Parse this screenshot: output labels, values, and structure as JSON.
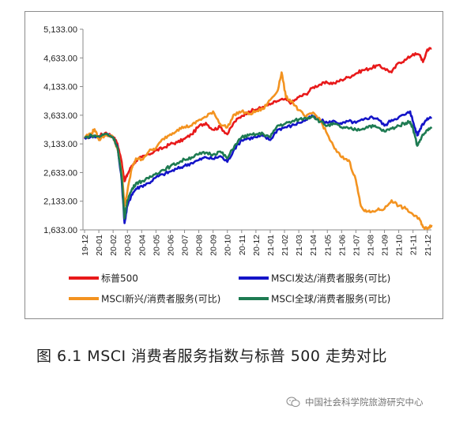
{
  "chart_data": {
    "type": "line",
    "title": "",
    "xlabel": "",
    "ylabel": "",
    "ylim": [
      1633,
      5133
    ],
    "yticks": [
      "5,133.00",
      "4,633.00",
      "4,133.00",
      "3,633.00",
      "3,133.00",
      "2,633.00",
      "2,133.00",
      "1,633.00"
    ],
    "ytick_values": [
      5133,
      4633,
      4133,
      3633,
      3133,
      2633,
      2133,
      1633
    ],
    "x_categories": [
      "19-12",
      "20-01",
      "20-02",
      "20-03",
      "20-04",
      "20-05",
      "20-06",
      "20-07",
      "20-08",
      "20-09",
      "20-10",
      "20-11",
      "20-12",
      "21-01",
      "21-02",
      "21-03",
      "21-04",
      "21-05",
      "21-06",
      "21-07",
      "21-08",
      "21-09",
      "21-10",
      "21-11",
      "21-12"
    ],
    "grid": false,
    "legend_position": "bottom",
    "series": [
      {
        "name": "标普500",
        "color": "#e8191a",
        "values": [
          {
            "x": 0,
            "y": 3230
          },
          {
            "x": 0.5,
            "y": 3280
          },
          {
            "x": 1,
            "y": 3270
          },
          {
            "x": 1.5,
            "y": 3330
          },
          {
            "x": 2,
            "y": 3260
          },
          {
            "x": 2.3,
            "y": 3140
          },
          {
            "x": 2.6,
            "y": 2820
          },
          {
            "x": 2.8,
            "y": 2480
          },
          {
            "x": 3,
            "y": 2600
          },
          {
            "x": 3.3,
            "y": 2750
          },
          {
            "x": 3.6,
            "y": 2840
          },
          {
            "x": 4,
            "y": 2900
          },
          {
            "x": 4.5,
            "y": 2950
          },
          {
            "x": 5,
            "y": 3020
          },
          {
            "x": 5.5,
            "y": 3060
          },
          {
            "x": 6,
            "y": 3130
          },
          {
            "x": 6.5,
            "y": 3160
          },
          {
            "x": 7,
            "y": 3220
          },
          {
            "x": 7.5,
            "y": 3300
          },
          {
            "x": 8,
            "y": 3440
          },
          {
            "x": 8.5,
            "y": 3500
          },
          {
            "x": 9,
            "y": 3380
          },
          {
            "x": 9.5,
            "y": 3430
          },
          {
            "x": 10,
            "y": 3300
          },
          {
            "x": 10.5,
            "y": 3520
          },
          {
            "x": 11,
            "y": 3620
          },
          {
            "x": 11.5,
            "y": 3700
          },
          {
            "x": 12,
            "y": 3730
          },
          {
            "x": 12.5,
            "y": 3780
          },
          {
            "x": 13,
            "y": 3820
          },
          {
            "x": 13.5,
            "y": 3880
          },
          {
            "x": 14,
            "y": 3910
          },
          {
            "x": 14.5,
            "y": 3850
          },
          {
            "x": 15,
            "y": 3950
          },
          {
            "x": 15.5,
            "y": 4000
          },
          {
            "x": 16,
            "y": 4120
          },
          {
            "x": 16.5,
            "y": 4170
          },
          {
            "x": 17,
            "y": 4200
          },
          {
            "x": 17.5,
            "y": 4190
          },
          {
            "x": 18,
            "y": 4250
          },
          {
            "x": 18.5,
            "y": 4300
          },
          {
            "x": 19,
            "y": 4360
          },
          {
            "x": 19.5,
            "y": 4420
          },
          {
            "x": 20,
            "y": 4450
          },
          {
            "x": 20.5,
            "y": 4500
          },
          {
            "x": 21,
            "y": 4450
          },
          {
            "x": 21.5,
            "y": 4380
          },
          {
            "x": 22,
            "y": 4550
          },
          {
            "x": 22.5,
            "y": 4600
          },
          {
            "x": 23,
            "y": 4700
          },
          {
            "x": 23.5,
            "y": 4680
          },
          {
            "x": 23.7,
            "y": 4560
          },
          {
            "x": 24,
            "y": 4780
          },
          {
            "x": 24.3,
            "y": 4800
          }
        ]
      },
      {
        "name": "MSCI发达/消费者服务(可比)",
        "color": "#1414c8",
        "values": [
          {
            "x": 0,
            "y": 3240
          },
          {
            "x": 0.5,
            "y": 3270
          },
          {
            "x": 1,
            "y": 3250
          },
          {
            "x": 1.5,
            "y": 3300
          },
          {
            "x": 2,
            "y": 3250
          },
          {
            "x": 2.3,
            "y": 3080
          },
          {
            "x": 2.6,
            "y": 2500
          },
          {
            "x": 2.8,
            "y": 1750
          },
          {
            "x": 3,
            "y": 2050
          },
          {
            "x": 3.3,
            "y": 2250
          },
          {
            "x": 3.6,
            "y": 2350
          },
          {
            "x": 4,
            "y": 2400
          },
          {
            "x": 4.5,
            "y": 2450
          },
          {
            "x": 5,
            "y": 2550
          },
          {
            "x": 5.5,
            "y": 2600
          },
          {
            "x": 6,
            "y": 2650
          },
          {
            "x": 6.5,
            "y": 2700
          },
          {
            "x": 7,
            "y": 2750
          },
          {
            "x": 7.5,
            "y": 2800
          },
          {
            "x": 8,
            "y": 2850
          },
          {
            "x": 8.5,
            "y": 2900
          },
          {
            "x": 9,
            "y": 2870
          },
          {
            "x": 9.5,
            "y": 2920
          },
          {
            "x": 10,
            "y": 2820
          },
          {
            "x": 10.5,
            "y": 3050
          },
          {
            "x": 11,
            "y": 3200
          },
          {
            "x": 11.5,
            "y": 3230
          },
          {
            "x": 12,
            "y": 3250
          },
          {
            "x": 12.5,
            "y": 3270
          },
          {
            "x": 13,
            "y": 3200
          },
          {
            "x": 13.5,
            "y": 3380
          },
          {
            "x": 14,
            "y": 3420
          },
          {
            "x": 14.5,
            "y": 3450
          },
          {
            "x": 15,
            "y": 3500
          },
          {
            "x": 15.5,
            "y": 3550
          },
          {
            "x": 16,
            "y": 3620
          },
          {
            "x": 16.5,
            "y": 3550
          },
          {
            "x": 17,
            "y": 3500
          },
          {
            "x": 17.5,
            "y": 3530
          },
          {
            "x": 18,
            "y": 3480
          },
          {
            "x": 18.5,
            "y": 3530
          },
          {
            "x": 19,
            "y": 3500
          },
          {
            "x": 19.5,
            "y": 3550
          },
          {
            "x": 20,
            "y": 3600
          },
          {
            "x": 20.5,
            "y": 3580
          },
          {
            "x": 21,
            "y": 3450
          },
          {
            "x": 21.5,
            "y": 3550
          },
          {
            "x": 22,
            "y": 3600
          },
          {
            "x": 22.5,
            "y": 3650
          },
          {
            "x": 22.8,
            "y": 3700
          },
          {
            "x": 23,
            "y": 3520
          },
          {
            "x": 23.3,
            "y": 3280
          },
          {
            "x": 23.6,
            "y": 3450
          },
          {
            "x": 24,
            "y": 3580
          },
          {
            "x": 24.3,
            "y": 3600
          }
        ]
      },
      {
        "name": "MSCI新兴/消费者服务(可比)",
        "color": "#f39320",
        "values": [
          {
            "x": 0,
            "y": 3260
          },
          {
            "x": 0.5,
            "y": 3320
          },
          {
            "x": 0.7,
            "y": 3390
          },
          {
            "x": 1,
            "y": 3200
          },
          {
            "x": 1.5,
            "y": 3300
          },
          {
            "x": 2,
            "y": 3250
          },
          {
            "x": 2.3,
            "y": 3050
          },
          {
            "x": 2.6,
            "y": 2650
          },
          {
            "x": 2.8,
            "y": 2050
          },
          {
            "x": 3,
            "y": 2300
          },
          {
            "x": 3.3,
            "y": 2700
          },
          {
            "x": 3.6,
            "y": 2880
          },
          {
            "x": 4,
            "y": 2860
          },
          {
            "x": 4.5,
            "y": 3000
          },
          {
            "x": 5,
            "y": 3060
          },
          {
            "x": 5.5,
            "y": 3220
          },
          {
            "x": 6,
            "y": 3300
          },
          {
            "x": 6.5,
            "y": 3380
          },
          {
            "x": 7,
            "y": 3430
          },
          {
            "x": 7.5,
            "y": 3450
          },
          {
            "x": 8,
            "y": 3550
          },
          {
            "x": 8.5,
            "y": 3600
          },
          {
            "x": 9,
            "y": 3700
          },
          {
            "x": 9.5,
            "y": 3480
          },
          {
            "x": 10,
            "y": 3420
          },
          {
            "x": 10.5,
            "y": 3650
          },
          {
            "x": 11,
            "y": 3700
          },
          {
            "x": 11.5,
            "y": 3650
          },
          {
            "x": 12,
            "y": 3700
          },
          {
            "x": 12.5,
            "y": 3740
          },
          {
            "x": 13,
            "y": 3900
          },
          {
            "x": 13.5,
            "y": 4050
          },
          {
            "x": 13.8,
            "y": 4380
          },
          {
            "x": 14.1,
            "y": 3950
          },
          {
            "x": 14.5,
            "y": 3880
          },
          {
            "x": 15,
            "y": 3720
          },
          {
            "x": 15.5,
            "y": 3600
          },
          {
            "x": 16,
            "y": 3680
          },
          {
            "x": 16.5,
            "y": 3550
          },
          {
            "x": 17,
            "y": 3300
          },
          {
            "x": 17.5,
            "y": 3050
          },
          {
            "x": 18,
            "y": 2900
          },
          {
            "x": 18.5,
            "y": 2850
          },
          {
            "x": 19,
            "y": 2500
          },
          {
            "x": 19.3,
            "y": 2100
          },
          {
            "x": 19.6,
            "y": 1960
          },
          {
            "x": 20,
            "y": 1940
          },
          {
            "x": 20.5,
            "y": 1980
          },
          {
            "x": 21,
            "y": 2000
          },
          {
            "x": 21.5,
            "y": 2150
          },
          {
            "x": 22,
            "y": 2050
          },
          {
            "x": 22.5,
            "y": 2000
          },
          {
            "x": 23,
            "y": 1900
          },
          {
            "x": 23.5,
            "y": 1800
          },
          {
            "x": 23.8,
            "y": 1650
          },
          {
            "x": 24.1,
            "y": 1680
          },
          {
            "x": 24.3,
            "y": 1720
          }
        ]
      },
      {
        "name": "MSCI全球/消费者服务(可比)",
        "color": "#1e7b52",
        "values": [
          {
            "x": 0,
            "y": 3240
          },
          {
            "x": 0.5,
            "y": 3280
          },
          {
            "x": 1,
            "y": 3260
          },
          {
            "x": 1.5,
            "y": 3310
          },
          {
            "x": 2,
            "y": 3250
          },
          {
            "x": 2.3,
            "y": 3080
          },
          {
            "x": 2.6,
            "y": 2550
          },
          {
            "x": 2.8,
            "y": 1830
          },
          {
            "x": 3,
            "y": 2150
          },
          {
            "x": 3.3,
            "y": 2330
          },
          {
            "x": 3.6,
            "y": 2450
          },
          {
            "x": 4,
            "y": 2480
          },
          {
            "x": 4.5,
            "y": 2530
          },
          {
            "x": 5,
            "y": 2620
          },
          {
            "x": 5.5,
            "y": 2680
          },
          {
            "x": 6,
            "y": 2740
          },
          {
            "x": 6.5,
            "y": 2800
          },
          {
            "x": 7,
            "y": 2860
          },
          {
            "x": 7.5,
            "y": 2900
          },
          {
            "x": 8,
            "y": 2950
          },
          {
            "x": 8.5,
            "y": 2980
          },
          {
            "x": 9,
            "y": 2950
          },
          {
            "x": 9.5,
            "y": 3000
          },
          {
            "x": 10,
            "y": 2880
          },
          {
            "x": 10.5,
            "y": 3100
          },
          {
            "x": 11,
            "y": 3250
          },
          {
            "x": 11.5,
            "y": 3280
          },
          {
            "x": 12,
            "y": 3300
          },
          {
            "x": 12.5,
            "y": 3310
          },
          {
            "x": 13,
            "y": 3250
          },
          {
            "x": 13.5,
            "y": 3450
          },
          {
            "x": 14,
            "y": 3480
          },
          {
            "x": 14.5,
            "y": 3520
          },
          {
            "x": 15,
            "y": 3560
          },
          {
            "x": 15.5,
            "y": 3580
          },
          {
            "x": 16,
            "y": 3620
          },
          {
            "x": 16.5,
            "y": 3520
          },
          {
            "x": 17,
            "y": 3450
          },
          {
            "x": 17.5,
            "y": 3480
          },
          {
            "x": 18,
            "y": 3420
          },
          {
            "x": 18.5,
            "y": 3400
          },
          {
            "x": 19,
            "y": 3380
          },
          {
            "x": 19.5,
            "y": 3400
          },
          {
            "x": 20,
            "y": 3450
          },
          {
            "x": 20.5,
            "y": 3420
          },
          {
            "x": 21,
            "y": 3350
          },
          {
            "x": 21.5,
            "y": 3400
          },
          {
            "x": 22,
            "y": 3450
          },
          {
            "x": 22.5,
            "y": 3500
          },
          {
            "x": 22.8,
            "y": 3520
          },
          {
            "x": 23,
            "y": 3400
          },
          {
            "x": 23.3,
            "y": 3100
          },
          {
            "x": 23.6,
            "y": 3250
          },
          {
            "x": 24,
            "y": 3380
          },
          {
            "x": 24.3,
            "y": 3400
          }
        ]
      }
    ]
  },
  "caption": "图 6.1 MSCI 消费者服务指数与标普 500 走势对比",
  "watermark": {
    "text": "中国社会科学院旅游研究中心",
    "icon": "wechat-icon"
  }
}
